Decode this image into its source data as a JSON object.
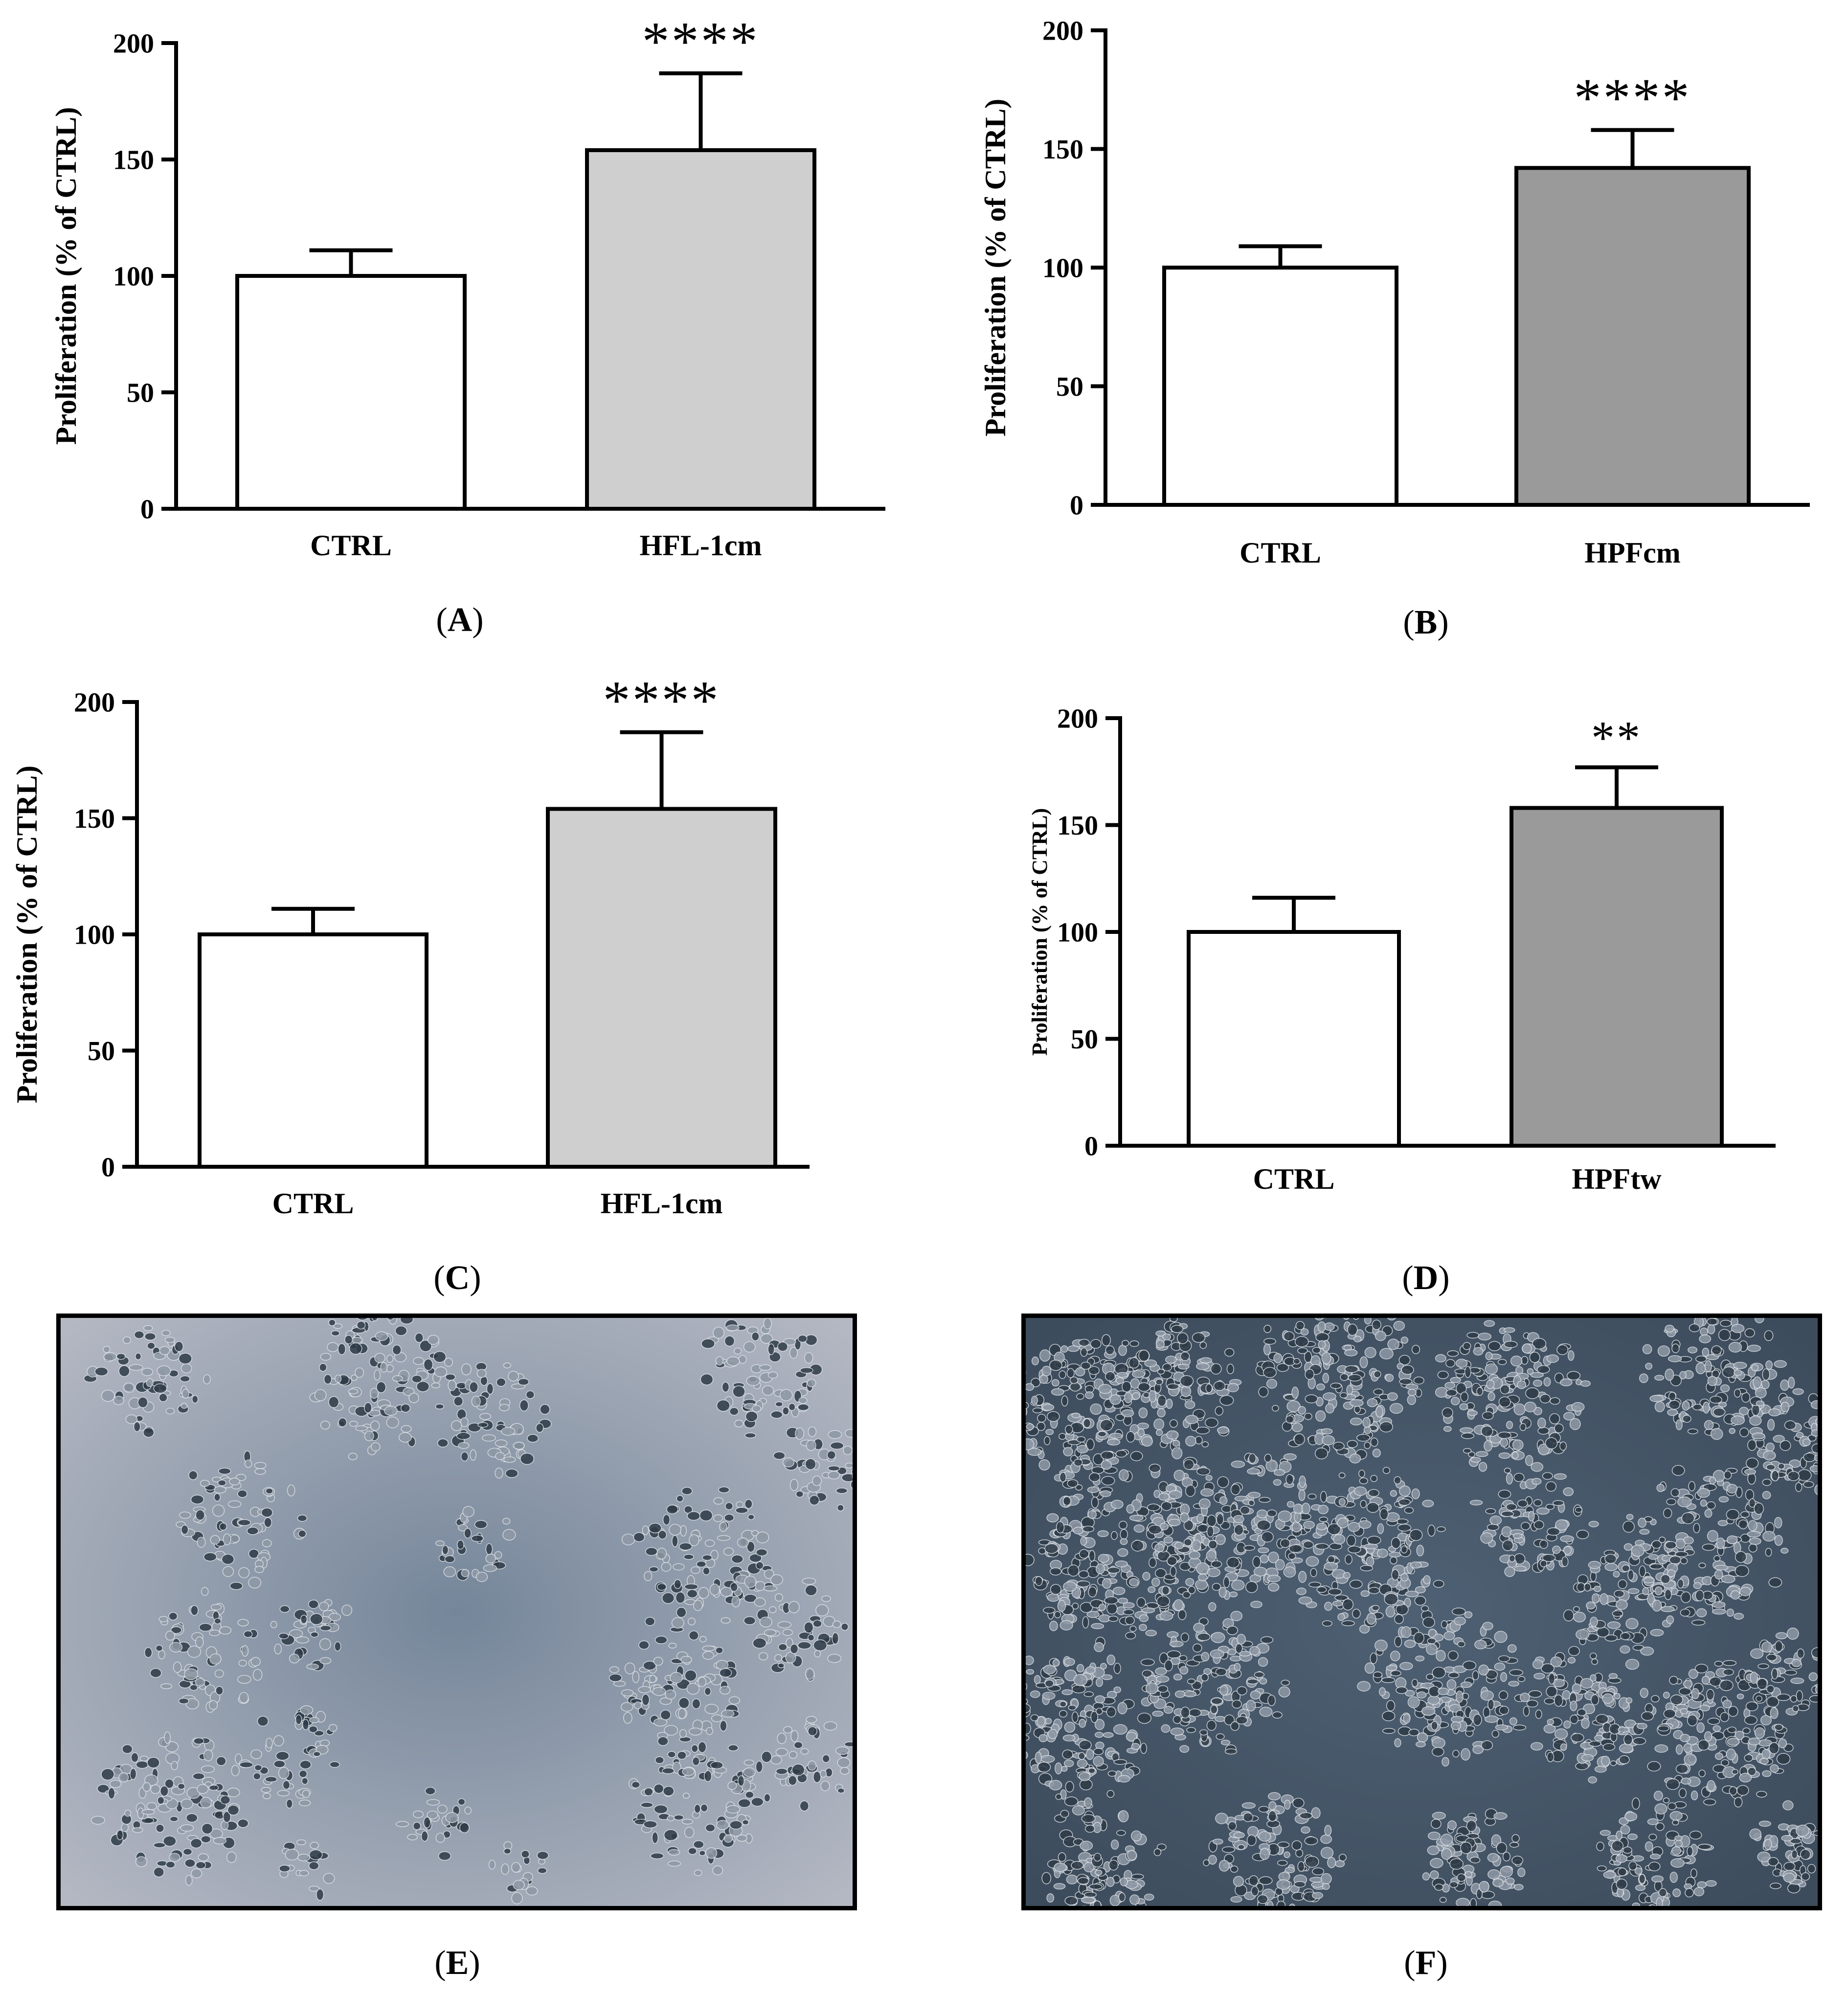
{
  "chart_data": [
    {
      "type": "bar",
      "panel_label": "(A)",
      "categories": [
        "CTRL",
        "HFL-1cm"
      ],
      "values": [
        100,
        154
      ],
      "errors": [
        11,
        33
      ],
      "bar_colors": [
        "#ffffff",
        "#cfcfcf"
      ],
      "significance": [
        "",
        "****"
      ],
      "ylabel": "Proliferation (% of CTRL)",
      "ylim": [
        0,
        200
      ],
      "yticks": [
        "0",
        "50",
        "100",
        "150",
        "200"
      ],
      "grid": false,
      "legend": "none"
    },
    {
      "type": "bar",
      "panel_label": "(B)",
      "categories": [
        "CTRL",
        "HPFcm"
      ],
      "values": [
        100,
        142
      ],
      "errors": [
        9,
        16
      ],
      "bar_colors": [
        "#ffffff",
        "#9a9a9a"
      ],
      "significance": [
        "",
        "****"
      ],
      "ylabel": "Proliferation (% of CTRL)",
      "ylim": [
        0,
        200
      ],
      "yticks": [
        "0",
        "50",
        "100",
        "150",
        "200"
      ],
      "grid": false,
      "legend": "none"
    },
    {
      "type": "bar",
      "panel_label": "(C)",
      "categories": [
        "CTRL",
        "HFL-1cm"
      ],
      "values": [
        100,
        154
      ],
      "errors": [
        11,
        33
      ],
      "bar_colors": [
        "#ffffff",
        "#cfcfcf"
      ],
      "significance": [
        "",
        "****"
      ],
      "ylabel": "Proliferation (% of CTRL)",
      "ylim": [
        0,
        200
      ],
      "yticks": [
        "0",
        "50",
        "100",
        "150",
        "200"
      ],
      "grid": false,
      "legend": "none"
    },
    {
      "type": "bar",
      "panel_label": "(D)",
      "categories": [
        "CTRL",
        "HPFtw"
      ],
      "values": [
        100,
        158
      ],
      "errors": [
        16,
        19
      ],
      "bar_colors": [
        "#ffffff",
        "#9a9a9a"
      ],
      "significance": [
        "",
        "**"
      ],
      "ylabel": "Proliferation (% of CTRL)",
      "ylim": [
        0,
        200
      ],
      "yticks": [
        "0",
        "50",
        "100",
        "150",
        "200"
      ],
      "grid": false,
      "legend": "none"
    }
  ],
  "image_panels": [
    {
      "panel_label": "(E)",
      "image": "phase-contrast micrograph of cell colonies"
    },
    {
      "panel_label": "(F)",
      "image": "phase-contrast micrograph of dense cell colonies"
    }
  ],
  "colors": {
    "axis": "#000000",
    "micrograph_bg_e": "#6b7d92",
    "micrograph_bg_f": "#4c5f72"
  }
}
